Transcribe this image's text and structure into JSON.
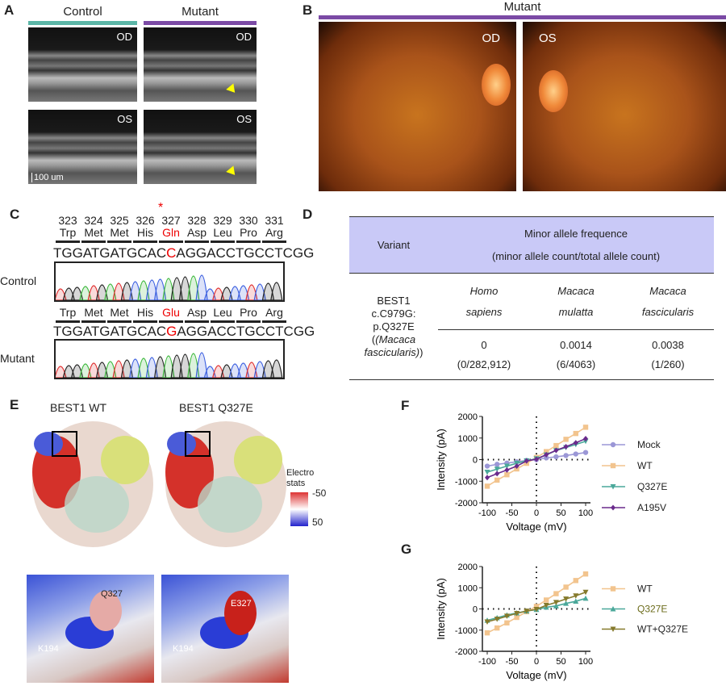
{
  "panels": {
    "A": "A",
    "B": "B",
    "C": "C",
    "D": "D",
    "E": "E",
    "F": "F",
    "G": "G"
  },
  "panelA": {
    "control": "Control",
    "mutant": "Mutant",
    "od": "OD",
    "os": "OS",
    "scale": "100 um",
    "control_color": "#5ab5a6",
    "mutant_color": "#7b4aa5"
  },
  "panelB": {
    "title": "Mutant",
    "od": "OD",
    "os": "OS"
  },
  "panelC": {
    "positions": [
      "323",
      "324",
      "325",
      "326",
      "327",
      "328",
      "329",
      "330",
      "331"
    ],
    "control_aa": [
      "Trp",
      "Met",
      "Met",
      "His",
      "Gln",
      "Asp",
      "Leu",
      "Pro",
      "Arg"
    ],
    "mutant_aa": [
      "Trp",
      "Met",
      "Met",
      "His",
      "Glu",
      "Asp",
      "Leu",
      "Pro",
      "Arg"
    ],
    "star": "*",
    "control_seq": {
      "pre": "TGGATGATGCAC",
      "mut": "C",
      "post": "AGGACCTGCCTCGG"
    },
    "mutant_seq": {
      "pre": "TGGATGATGCAC",
      "mut": "G",
      "post": "AGGACCTGCCTCGG"
    },
    "control_label": "Control",
    "mutant_label": "Mutant"
  },
  "panelD": {
    "header_variant": "Variant",
    "header_title": "Minor allele frequence",
    "header_sub": "(minor allele count/total allele count)",
    "variant": [
      "BEST1",
      "c.C979G:",
      "p.Q327E",
      "(Macaca",
      "fascicularis)"
    ],
    "species": [
      [
        "Homo",
        "sapiens"
      ],
      [
        "Macaca",
        "mulatta"
      ],
      [
        "Macaca",
        "fascicularis"
      ]
    ],
    "freq": [
      "0",
      "0.0014",
      "0.0038"
    ],
    "counts": [
      "(0/282,912)",
      "(6/4063)",
      "(1/260)"
    ],
    "header_bg": "#c9c9f7"
  },
  "panelE": {
    "wt": "BEST1 WT",
    "mut": "BEST1 Q327E",
    "q327": "Q327",
    "e327": "E327",
    "k194": "K194",
    "k194b": "K194",
    "legend_title1": "Electro",
    "legend_title2": "stats",
    "legend_min": "-50",
    "legend_max": "50"
  },
  "chart_data": [
    {
      "type": "line",
      "panel": "F",
      "xlabel": "Voltage (mV)",
      "ylabel": "Intensity (pA)",
      "xlim": [
        -110,
        110
      ],
      "ylim": [
        -2000,
        2000
      ],
      "xticks": [
        "-100",
        "-50",
        "0",
        "50",
        "100"
      ],
      "yticks": [
        "2000",
        "1000",
        "0",
        "-1000",
        "-2000"
      ],
      "legend": "right",
      "x": [
        -100,
        -80,
        -60,
        -40,
        -20,
        0,
        20,
        40,
        60,
        80,
        100
      ],
      "series": [
        {
          "name": "Mock",
          "color": "#9b97d6",
          "marker": "circle",
          "values": [
            -300,
            -220,
            -160,
            -100,
            -40,
            0,
            80,
            130,
            190,
            260,
            330
          ]
        },
        {
          "name": "WT",
          "color": "#f2c48e",
          "marker": "square",
          "values": [
            -1230,
            -950,
            -700,
            -430,
            -170,
            100,
            370,
            650,
            940,
            1210,
            1500
          ]
        },
        {
          "name": "Q327E",
          "color": "#4aa89a",
          "marker": "tri-down",
          "values": [
            -580,
            -440,
            -300,
            -170,
            -50,
            40,
            220,
            420,
            560,
            700,
            850
          ]
        },
        {
          "name": "A195V",
          "color": "#6a2a8c",
          "marker": "diamond",
          "values": [
            -830,
            -650,
            -480,
            -300,
            -60,
            20,
            230,
            430,
            600,
            780,
            970
          ]
        }
      ]
    },
    {
      "type": "line",
      "panel": "G",
      "xlabel": "Voltage (mV)",
      "ylabel": "Intensity (pA)",
      "xlim": [
        -110,
        110
      ],
      "ylim": [
        -2000,
        2000
      ],
      "xticks": [
        "-100",
        "-50",
        "0",
        "50",
        "100"
      ],
      "yticks": [
        "2000",
        "1000",
        "0",
        "-1000",
        "-2000"
      ],
      "legend": "right",
      "x": [
        -100,
        -80,
        -60,
        -40,
        -20,
        0,
        20,
        40,
        60,
        80,
        100
      ],
      "series": [
        {
          "name": "WT",
          "color": "#f2c48e",
          "marker": "square",
          "values": [
            -1130,
            -900,
            -660,
            -400,
            -130,
            120,
            420,
            720,
            1030,
            1340,
            1650
          ]
        },
        {
          "name": "Q327E",
          "color": "#4aa89a",
          "marker": "tri-up",
          "label_color": "#6b6b1a",
          "values": [
            -540,
            -420,
            -290,
            -190,
            -100,
            -30,
            80,
            140,
            260,
            360,
            500
          ]
        },
        {
          "name": "WT+Q327E",
          "color": "#857a2c",
          "marker": "tri-down",
          "values": [
            -610,
            -480,
            -340,
            -210,
            -100,
            -20,
            170,
            310,
            470,
            620,
            790
          ]
        }
      ]
    }
  ]
}
